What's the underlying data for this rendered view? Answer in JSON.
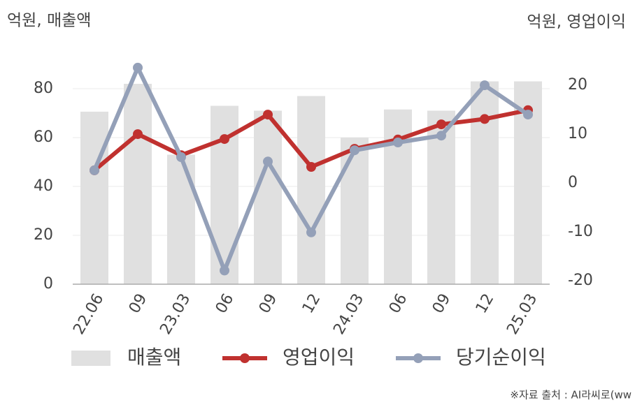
{
  "chart_data": {
    "type": "combo",
    "y_label": "억원, 매출액",
    "y2_label": "억원, 영업이익",
    "source": "※자료 출처 : AI라씨로(ww",
    "categories": [
      "22.06",
      "09",
      "23.03",
      "06",
      "09",
      "12",
      "24.03",
      "06",
      "09",
      "12",
      "25.03"
    ],
    "series": [
      {
        "name": "매출액",
        "type": "bar",
        "color": "#e0e0e0",
        "values": [
          70.6,
          82,
          53,
          73,
          71,
          77,
          60,
          71.5,
          71,
          83,
          83
        ]
      },
      {
        "name": "영업이익",
        "type": "line",
        "axis": "y2",
        "color": "#c0312f",
        "values": [
          2.6,
          10,
          5.7,
          9,
          14,
          3.3,
          7,
          8.9,
          12,
          13.1,
          14.9
        ]
      },
      {
        "name": "당기순이익",
        "type": "line",
        "axis": "y2",
        "color": "#94a0b8",
        "values": [
          2.6,
          23.6,
          5.3,
          -17.9,
          4.4,
          -10.1,
          6.7,
          8.3,
          9.7,
          20,
          14
        ]
      }
    ],
    "ylim": [
      0,
      90
    ],
    "yticks": [
      0,
      20,
      40,
      60,
      80
    ],
    "y2lim": [
      -20.7,
      24.3
    ],
    "y2ticks": [
      -20,
      -10,
      0,
      10,
      20
    ],
    "grid": true
  }
}
